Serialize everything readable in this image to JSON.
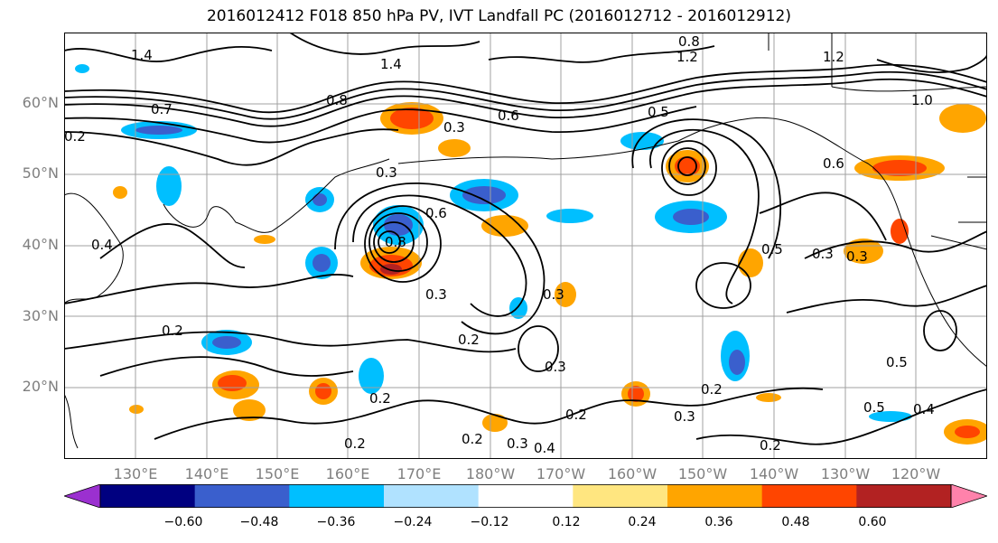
{
  "title": "2016012412 F018 850 hPa PV, IVT Landfall PC (2016012712 - 2016012912)",
  "lat_labels": [
    "60°N",
    "50°N",
    "40°N",
    "30°N",
    "20°N"
  ],
  "lon_labels": [
    "130°E",
    "140°E",
    "150°E",
    "160°E",
    "170°E",
    "180°W",
    "170°W",
    "160°W",
    "150°W",
    "140°W",
    "130°W",
    "120°W"
  ],
  "colorbar": {
    "ticks": [
      "−0.60",
      "−0.48",
      "−0.36",
      "−0.24",
      "−0.12",
      "0.12",
      "0.24",
      "0.36",
      "0.48",
      "0.60"
    ],
    "colors": [
      "#9b30d0",
      "#000080",
      "#3a5fcd",
      "#00bfff",
      "#b0e2ff",
      "#ffffff",
      "#ffe680",
      "#ffa500",
      "#ff4500",
      "#b22222",
      "#ff82ab"
    ]
  },
  "contour_labels": [
    "1.4",
    "1.2",
    "1.0",
    "0.8",
    "0.7",
    "0.6",
    "0.5",
    "0.4",
    "0.3",
    "0.2"
  ],
  "colors": {
    "contour": "#000000",
    "grid": "#a0a0a0",
    "axis_label": "#7f7f7f"
  }
}
